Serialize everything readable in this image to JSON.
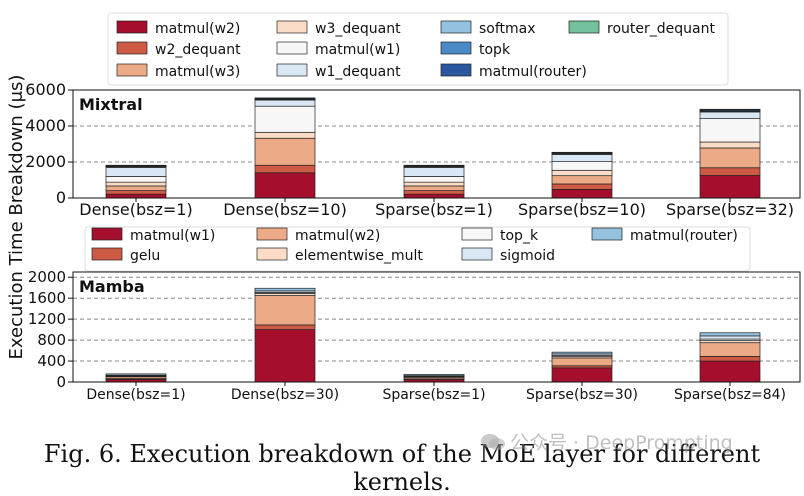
{
  "ylabel": "Execution Time Breakdown (μs)",
  "caption": "Fig. 6.  Execution breakdown of the MoE layer for different kernels.",
  "watermark": "公众号 · DeepPrompting",
  "chart_data": [
    {
      "type": "bar",
      "stacked": true,
      "title": "Mixtral",
      "categories": [
        "Dense(bsz=1)",
        "Dense(bsz=10)",
        "Sparse(bsz=1)",
        "Sparse(bsz=10)",
        "Sparse(bsz=32)"
      ],
      "ylim": [
        0,
        6000
      ],
      "yticks": [
        0,
        2000,
        4000,
        6000
      ],
      "ytick_labels": [
        "0",
        "2000",
        "4000",
        "6000"
      ],
      "grid": "horizontal dashed",
      "legend_position": "top",
      "series": [
        {
          "name": "matmul(w2)",
          "color": "#a50f2d",
          "values": [
            210,
            1400,
            210,
            480,
            1250
          ]
        },
        {
          "name": "w2_dequant",
          "color": "#cd5a45",
          "values": [
            200,
            420,
            200,
            300,
            430
          ]
        },
        {
          "name": "matmul(w3)",
          "color": "#ecab86",
          "values": [
            260,
            1500,
            260,
            460,
            1100
          ]
        },
        {
          "name": "w3_dequant",
          "color": "#fbdcc6",
          "values": [
            210,
            330,
            210,
            300,
            330
          ]
        },
        {
          "name": "matmul(w1)",
          "color": "#f7f7f7",
          "values": [
            320,
            1450,
            320,
            480,
            1300
          ]
        },
        {
          "name": "w1_dequant",
          "color": "#d8e7f3",
          "values": [
            500,
            340,
            500,
            400,
            370
          ]
        },
        {
          "name": "softmax",
          "color": "#93c1de",
          "values": [
            40,
            40,
            40,
            40,
            40
          ]
        },
        {
          "name": "topk",
          "color": "#4b8ac4",
          "values": [
            30,
            30,
            30,
            30,
            30
          ]
        },
        {
          "name": "matmul(router)",
          "color": "#2b57a0",
          "values": [
            30,
            30,
            30,
            30,
            60
          ]
        },
        {
          "name": "router_dequant",
          "color": "#72c19a",
          "values": [
            20,
            20,
            20,
            20,
            20
          ]
        }
      ]
    },
    {
      "type": "bar",
      "stacked": true,
      "title": "Mamba",
      "categories": [
        "Dense(bsz=1)",
        "Dense(bsz=30)",
        "Sparse(bsz=1)",
        "Sparse(bsz=30)",
        "Sparse(bsz=84)"
      ],
      "ylim": [
        0,
        2100
      ],
      "yticks": [
        0,
        400,
        800,
        1200,
        1600,
        2000
      ],
      "ytick_labels": [
        "0",
        "400",
        "800",
        "1200",
        "1600",
        "2000"
      ],
      "grid": "horizontal dashed",
      "legend_position": "top",
      "series": [
        {
          "name": "matmul(w1)",
          "color": "#a50f2d",
          "values": [
            50,
            1000,
            45,
            270,
            400
          ]
        },
        {
          "name": "gelu",
          "color": "#cd5a45",
          "values": [
            15,
            90,
            15,
            40,
            90
          ]
        },
        {
          "name": "matmul(w2)",
          "color": "#ecab86",
          "values": [
            35,
            560,
            30,
            150,
            260
          ]
        },
        {
          "name": "elementwise_mult",
          "color": "#fbdcc6",
          "values": [
            10,
            40,
            10,
            25,
            40
          ]
        },
        {
          "name": "top_k",
          "color": "#f7f7f7",
          "values": [
            10,
            20,
            10,
            20,
            30
          ]
        },
        {
          "name": "sigmoid",
          "color": "#d8e7f3",
          "values": [
            10,
            30,
            10,
            30,
            60
          ]
        },
        {
          "name": "matmul(router)",
          "color": "#93c1de",
          "values": [
            25,
            50,
            25,
            35,
            60
          ]
        }
      ]
    }
  ]
}
